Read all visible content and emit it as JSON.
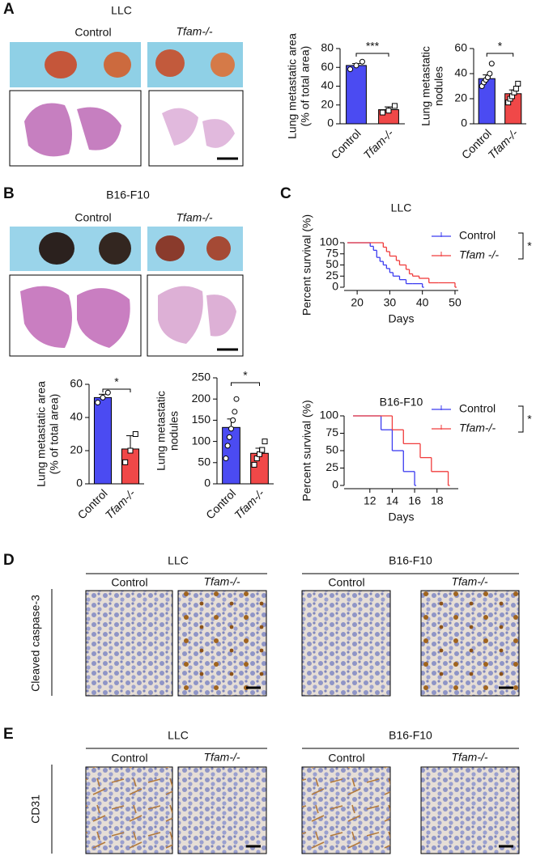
{
  "panels": {
    "A": {
      "letter": "A",
      "title": "LLC",
      "control": "Control",
      "knockout": "Tfam-/-"
    },
    "B": {
      "letter": "B",
      "title": "B16-F10",
      "control": "Control",
      "knockout": "Tfam-/-"
    },
    "C": {
      "letter": "C"
    },
    "D": {
      "letter": "D",
      "group_1": "LLC",
      "group_2": "B16-F10",
      "columns": [
        "Control",
        "Tfam-/-",
        "Control",
        "Tfam-/-"
      ],
      "row_label": "Cleaved caspase-3"
    },
    "E": {
      "letter": "E",
      "group_1": "LLC",
      "group_2": "B16-F10",
      "columns": [
        "Control",
        "Tfam-/-",
        "Control",
        "Tfam-/-"
      ],
      "row_label": "CD31"
    }
  },
  "chart_data": [
    {
      "type": "bar",
      "ylabel": [
        "Lung metastatic area",
        "(% of total area)"
      ],
      "categories": [
        "Control",
        "Tfam-/-"
      ],
      "colors": [
        "#4b4bf2",
        "#f04848"
      ],
      "values": [
        62,
        15
      ],
      "errors": [
        2,
        3
      ],
      "points": [
        [
          58,
          62,
          66
        ],
        [
          12,
          14,
          19
        ]
      ],
      "ylim": [
        0,
        80
      ],
      "yticks": [
        0,
        20,
        40,
        60,
        80
      ],
      "significance": "***"
    },
    {
      "type": "bar",
      "ylabel": [
        "Lung metastatic",
        "nodules"
      ],
      "categories": [
        "Control",
        "Tfam-/-"
      ],
      "colors": [
        "#4b4bf2",
        "#f04848"
      ],
      "values": [
        36,
        24
      ],
      "errors": [
        3,
        3
      ],
      "points": [
        [
          30,
          33,
          35,
          37,
          40,
          48
        ],
        [
          17,
          20,
          22,
          25,
          28,
          32
        ]
      ],
      "ylim": [
        0,
        60
      ],
      "yticks": [
        0,
        20,
        40,
        60
      ],
      "significance": "*"
    },
    {
      "type": "bar",
      "ylabel": [
        "Lung metastatic area",
        "(% of total area)"
      ],
      "categories": [
        "Control",
        "Tfam-/-"
      ],
      "colors": [
        "#4b4bf2",
        "#f04848"
      ],
      "values": [
        52,
        21
      ],
      "errors": [
        2,
        8
      ],
      "points": [
        [
          49,
          52,
          55
        ],
        [
          13,
          20,
          30
        ]
      ],
      "ylim": [
        0,
        60
      ],
      "yticks": [
        0,
        20,
        40,
        60
      ],
      "significance": "*"
    },
    {
      "type": "bar",
      "ylabel": [
        "Lung metastatic",
        "nodules"
      ],
      "categories": [
        "Control",
        "Tfam-/-"
      ],
      "colors": [
        "#4b4bf2",
        "#f04848"
      ],
      "values": [
        133,
        72
      ],
      "errors": [
        20,
        12
      ],
      "points": [
        [
          60,
          90,
          110,
          130,
          150,
          170,
          200
        ],
        [
          45,
          60,
          70,
          80,
          100
        ]
      ],
      "ylim": [
        0,
        250
      ],
      "yticks": [
        0,
        50,
        100,
        150,
        200,
        250
      ],
      "significance": "*"
    },
    {
      "type": "step",
      "title": "LLC",
      "xlabel": "Days",
      "ylabel": "Percent survival (%)",
      "xlim": [
        16,
        51
      ],
      "xticks": [
        20,
        30,
        40,
        50
      ],
      "ylim": [
        0,
        100
      ],
      "yticks": [
        0,
        25,
        50,
        75,
        100
      ],
      "significance": "*",
      "series": [
        {
          "name": "Control",
          "color": "#3c3cf0",
          "x": [
            17,
            24,
            25,
            26,
            27,
            28,
            29,
            30,
            31,
            33,
            35,
            37,
            40
          ],
          "values": [
            100,
            92,
            83,
            67,
            58,
            50,
            42,
            33,
            25,
            17,
            8,
            8,
            0
          ]
        },
        {
          "name": "Tfam -/-",
          "color": "#f03c3c",
          "x": [
            17,
            28,
            29,
            30,
            32,
            33,
            35,
            36,
            37,
            39,
            42,
            45,
            50
          ],
          "values": [
            100,
            90,
            80,
            70,
            60,
            50,
            40,
            30,
            25,
            20,
            10,
            10,
            0
          ]
        }
      ]
    },
    {
      "type": "step",
      "title": "B16-F10",
      "xlabel": "Days",
      "ylabel": "Percent survival (%)",
      "xlim": [
        9.7,
        19.9
      ],
      "xticks": [
        12,
        14,
        16,
        18
      ],
      "ylim": [
        0,
        100
      ],
      "yticks": [
        0,
        25,
        50,
        75,
        100
      ],
      "significance": "*",
      "series": [
        {
          "name": "Control",
          "color": "#3c3cf0",
          "x": [
            10.5,
            13,
            14,
            15,
            16
          ],
          "values": [
            100,
            80,
            50,
            20,
            0
          ]
        },
        {
          "name": "Tfam-/-",
          "color": "#f03c3c",
          "x": [
            10.5,
            14,
            15,
            16.5,
            17.5,
            19
          ],
          "values": [
            100,
            80,
            60,
            40,
            20,
            0
          ]
        }
      ]
    }
  ]
}
